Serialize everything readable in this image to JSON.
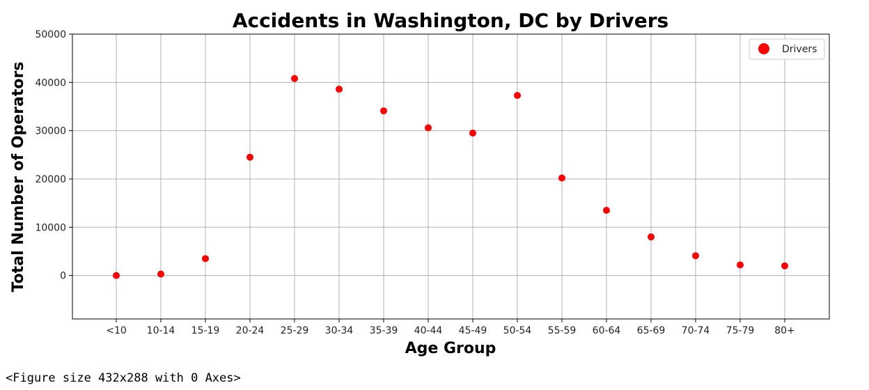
{
  "chart_data": {
    "type": "scatter",
    "title": "Accidents in Washington, DC by Drivers",
    "xlabel": "Age Group",
    "ylabel": "Total Number of Operators",
    "categories": [
      "<10",
      "10-14",
      "15-19",
      "20-24",
      "25-29",
      "30-34",
      "35-39",
      "40-44",
      "45-49",
      "50-54",
      "55-59",
      "60-64",
      "65-69",
      "70-74",
      "75-79",
      "80+"
    ],
    "series": [
      {
        "name": "Drivers",
        "color": "#ff0000",
        "values": [
          0,
          300,
          3500,
          24500,
          40800,
          38600,
          34100,
          30600,
          29500,
          37300,
          20200,
          13500,
          8000,
          4100,
          2200,
          2000
        ]
      }
    ],
    "ylim": [
      -9000,
      50000
    ],
    "yticks": [
      0,
      10000,
      20000,
      30000,
      40000,
      50000
    ],
    "grid": true,
    "legend_position": "top-right"
  },
  "caption": "<Figure size 432x288 with 0 Axes>"
}
